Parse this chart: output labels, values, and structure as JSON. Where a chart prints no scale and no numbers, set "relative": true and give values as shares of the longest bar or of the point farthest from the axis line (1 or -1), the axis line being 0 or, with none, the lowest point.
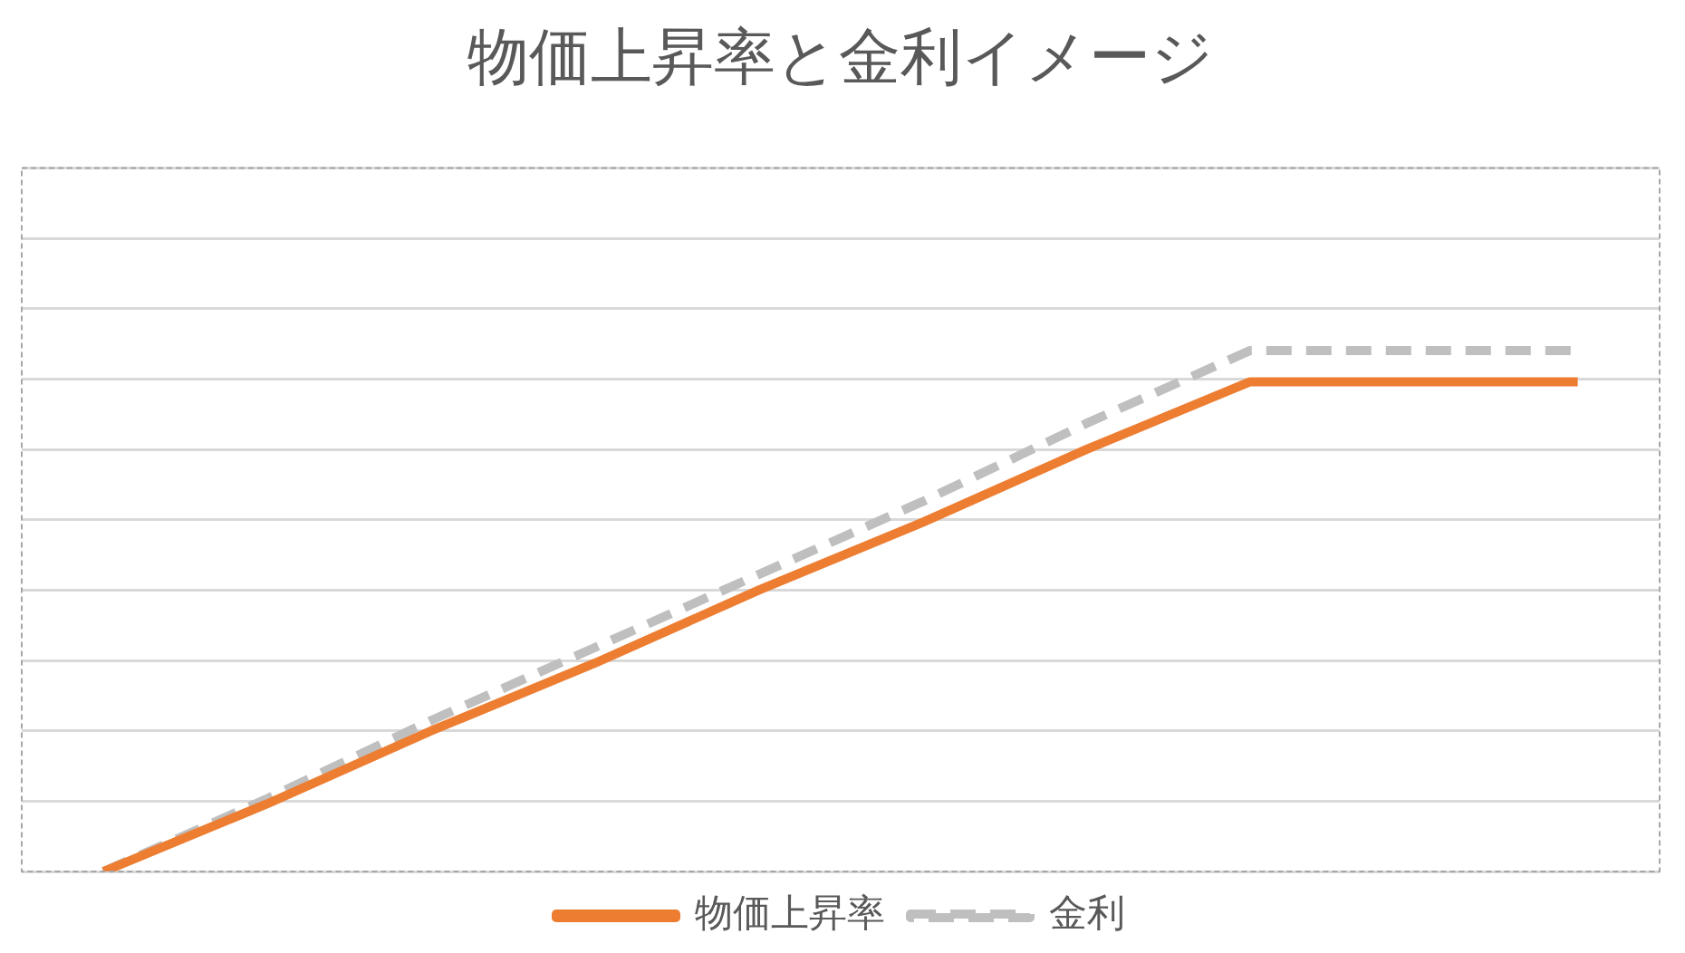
{
  "chart_data": {
    "type": "line",
    "title": "物価上昇率と金利イメージ",
    "relative": true,
    "grid": "y",
    "legend": "bottom",
    "marker": "none",
    "categories": [
      null,
      null,
      null,
      null,
      null,
      null,
      null,
      null,
      null,
      null
    ],
    "series": [
      {
        "name": "物価上昇率",
        "color": "#ed7d31",
        "values": [
          0,
          0.13,
          0.27,
          0.4,
          0.54,
          0.67,
          0.81,
          0.94,
          0.94,
          0.94
        ]
      },
      {
        "name": "金利",
        "color": "#bfbfbf",
        "line_style": "dashed",
        "values": [
          0,
          0.14,
          0.29,
          0.43,
          0.57,
          0.71,
          0.86,
          1,
          1,
          1
        ]
      }
    ]
  }
}
